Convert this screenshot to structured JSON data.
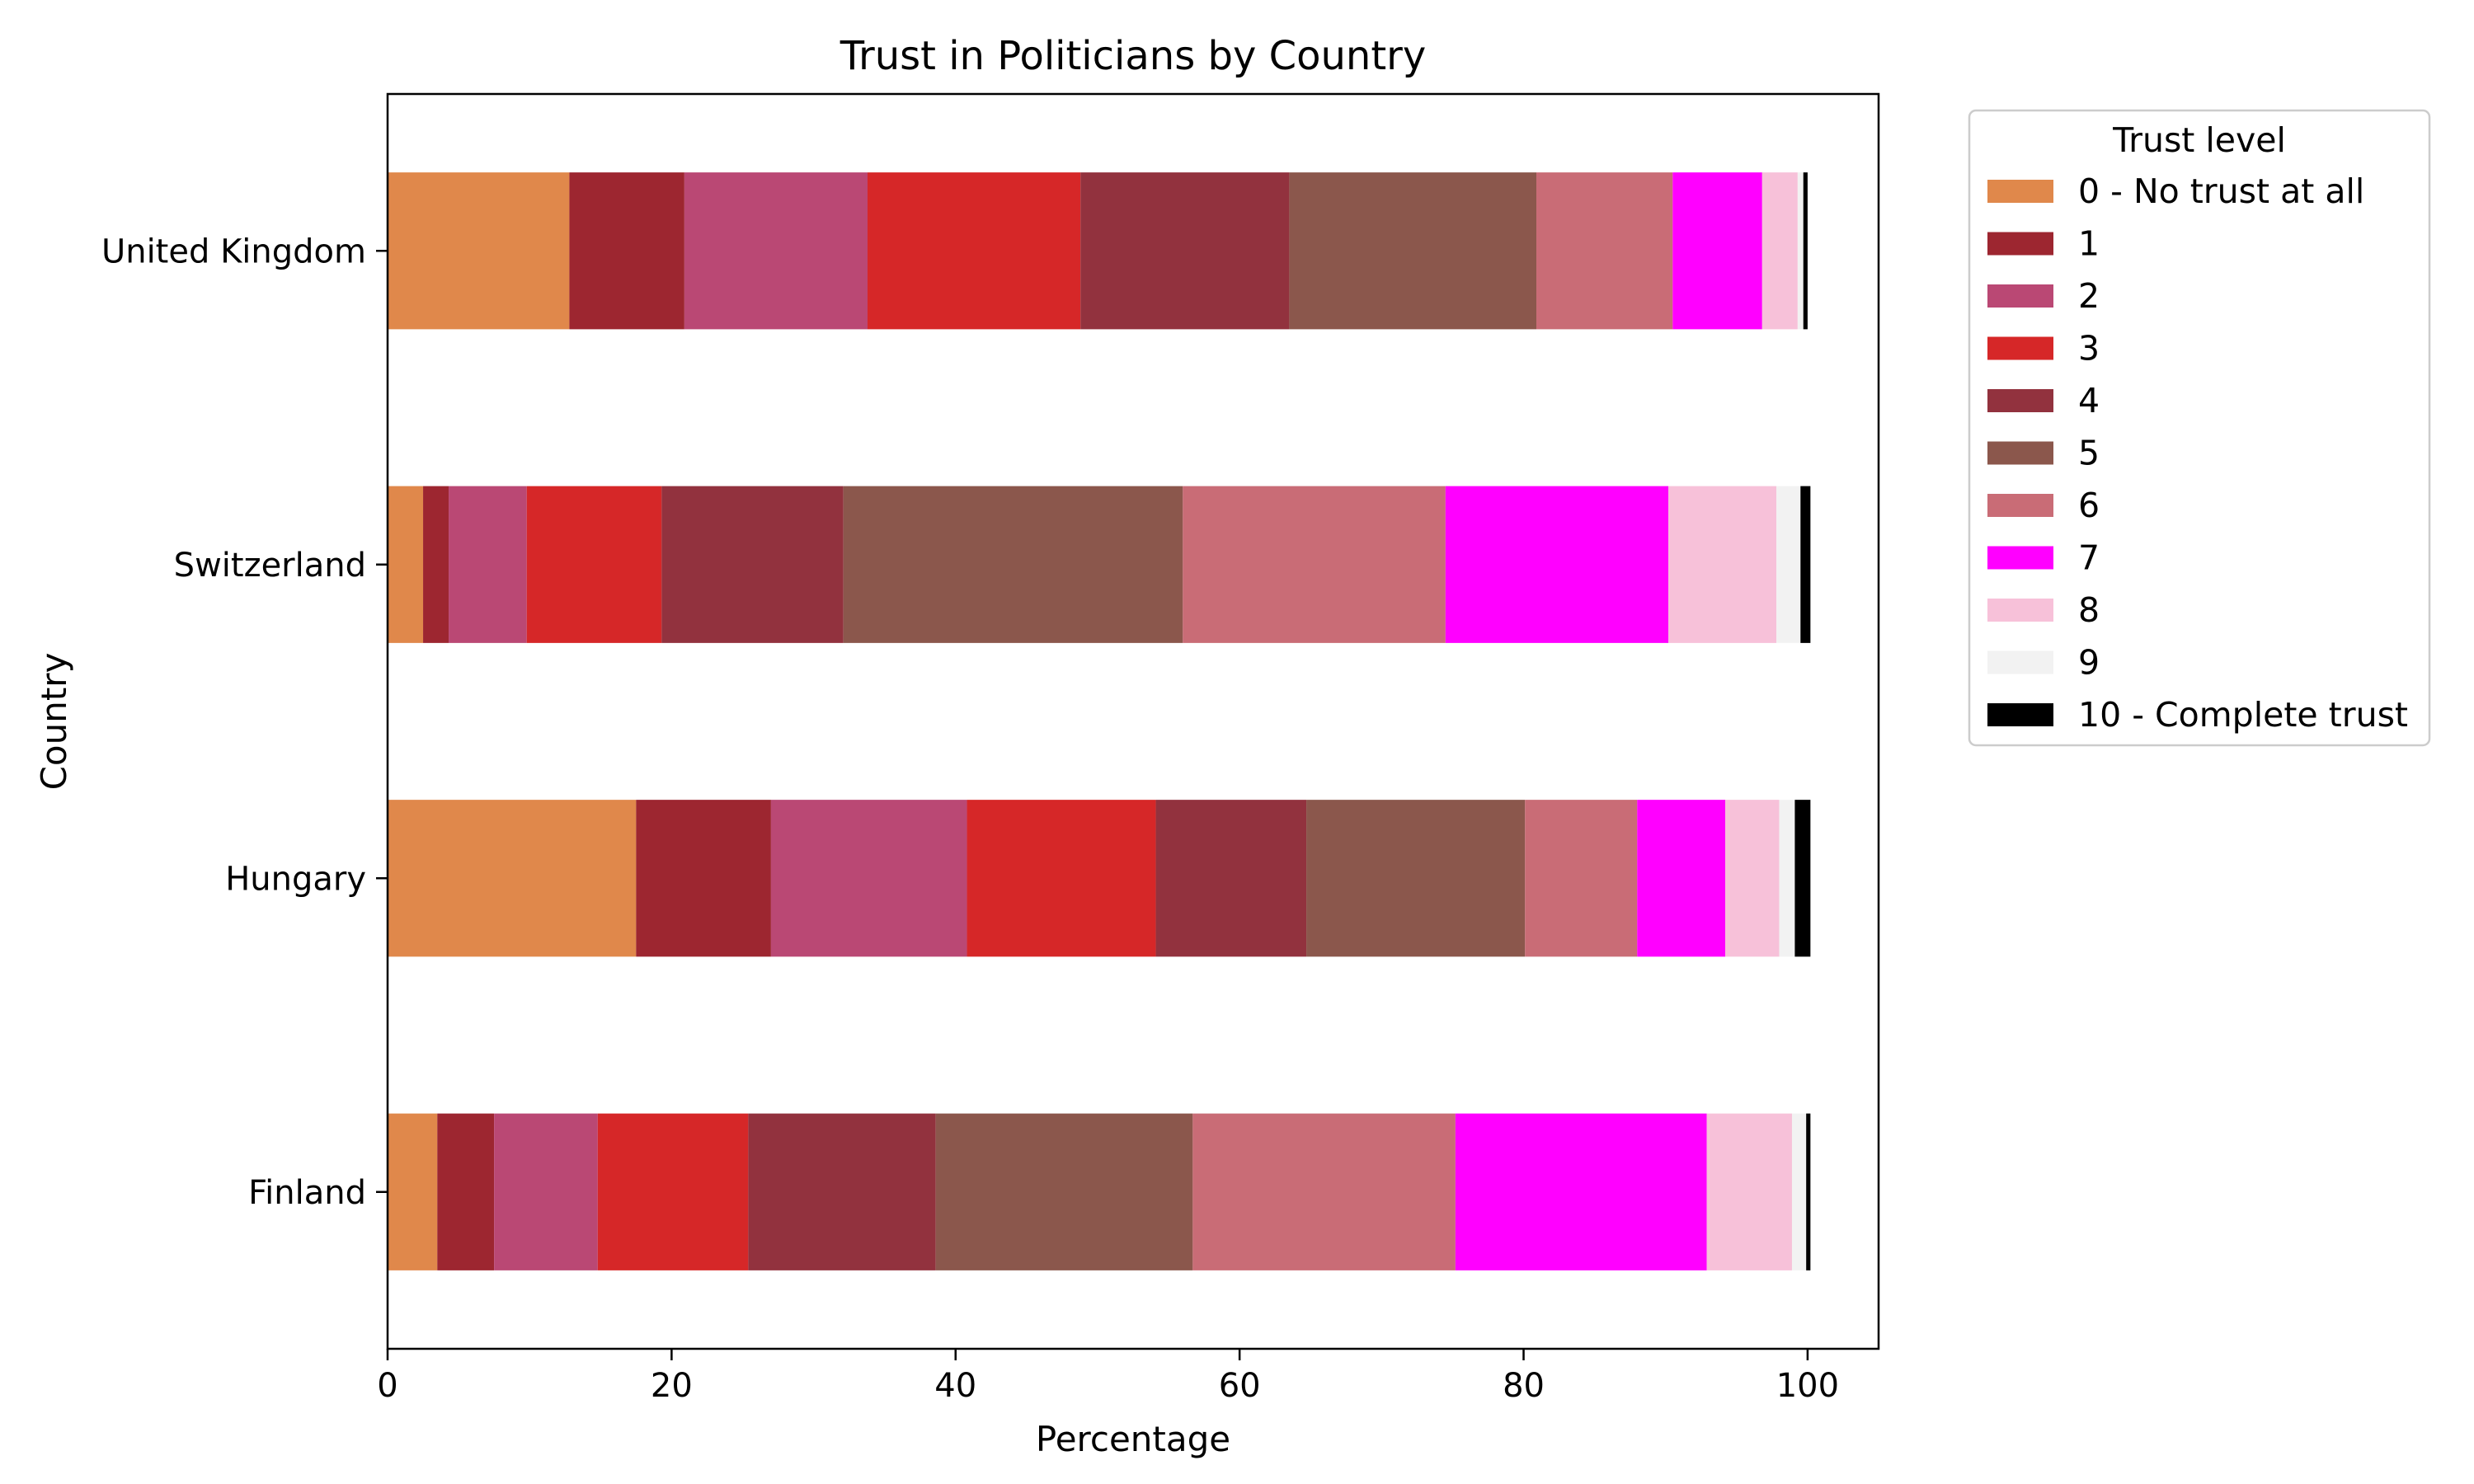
{
  "chart_data": {
    "type": "bar",
    "orientation": "horizontal",
    "stacked": true,
    "title": "Trust in Politicians by Country",
    "xlabel": "Percentage",
    "ylabel": "Country",
    "xlim": [
      0,
      105
    ],
    "xticks": [
      0,
      20,
      40,
      60,
      80,
      100
    ],
    "grid": false,
    "legend_title": "Trust level",
    "legend_position": "outside-top-right",
    "categories": [
      "Finland",
      "Hungary",
      "Switzerland",
      "United Kingdom"
    ],
    "series": [
      {
        "name": "0 - No trust at all",
        "color": "#e0884b",
        "values": [
          3.5,
          17.5,
          2.5,
          12.8
        ]
      },
      {
        "name": "1",
        "color": "#9d2630",
        "values": [
          4.0,
          9.5,
          1.8,
          8.1
        ]
      },
      {
        "name": "2",
        "color": "#ba4874",
        "values": [
          7.3,
          13.8,
          5.5,
          12.9
        ]
      },
      {
        "name": "3",
        "color": "#d62728",
        "values": [
          10.6,
          13.3,
          9.5,
          15.0
        ]
      },
      {
        "name": "4",
        "color": "#92323e",
        "values": [
          13.2,
          10.6,
          12.8,
          14.7
        ]
      },
      {
        "name": "5",
        "color": "#8b574c",
        "values": [
          18.1,
          15.4,
          23.9,
          17.4
        ]
      },
      {
        "name": "6",
        "color": "#c96c76",
        "values": [
          18.5,
          7.9,
          18.5,
          9.6
        ]
      },
      {
        "name": "7",
        "color": "#ff00ff",
        "values": [
          17.7,
          6.2,
          15.7,
          6.3
        ]
      },
      {
        "name": "8",
        "color": "#f7c1d9",
        "values": [
          6.0,
          3.8,
          7.6,
          2.5
        ]
      },
      {
        "name": "9",
        "color": "#f2f2f2",
        "values": [
          1.0,
          1.1,
          1.7,
          0.4
        ]
      },
      {
        "name": "10 - Complete trust",
        "color": "#000000",
        "values": [
          0.3,
          1.1,
          0.7,
          0.3
        ]
      }
    ]
  }
}
